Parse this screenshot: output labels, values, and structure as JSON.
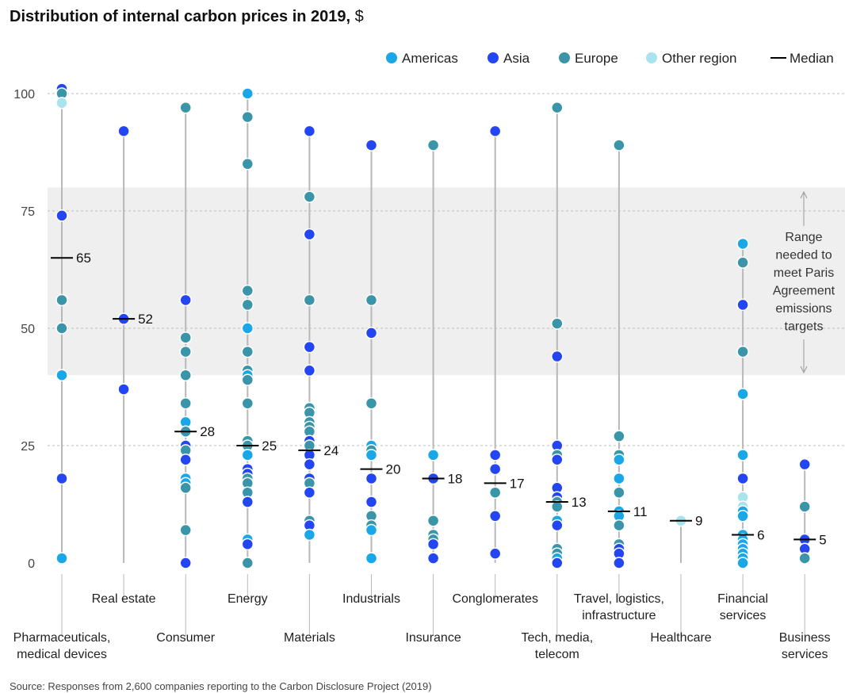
{
  "title": "Distribution of internal carbon prices in 2019,",
  "title_unit": "$",
  "source": "Source: Responses from 2,600 companies reporting to the Carbon Disclosure Project (2019)",
  "colors": {
    "Americas": "#1aa7e8",
    "Asia": "#2445f2",
    "Europe": "#3a95a8",
    "Other region": "#a9e3ee",
    "median": "#000000",
    "stem": "#b8b8b8",
    "band": "#efefef",
    "grid": "#bdbdbd"
  },
  "legend": {
    "items": [
      {
        "label": "Americas",
        "color_key": "Americas"
      },
      {
        "label": "Asia",
        "color_key": "Asia"
      },
      {
        "label": "Europe",
        "color_key": "Europe"
      },
      {
        "label": "Other region",
        "color_key": "Other region"
      }
    ],
    "median_label": "Median"
  },
  "range_annotation": [
    "Range",
    "needed to",
    "meet Paris",
    "Agreement",
    "emissions",
    "targets"
  ],
  "chart_data": {
    "type": "scatter",
    "title": "Distribution of internal carbon prices in 2019, $",
    "ylim": [
      0,
      100
    ],
    "yticks": [
      0,
      25,
      50,
      75,
      100
    ],
    "band": [
      40,
      80
    ],
    "grid": true,
    "legend_position": "top-right",
    "categories": [
      {
        "name": [
          "Pharmaceuticals,",
          "medical devices"
        ],
        "row": 2,
        "median": 65,
        "points": [
          [
            101,
            "Asia"
          ],
          [
            100,
            "Europe"
          ],
          [
            98,
            "Other region"
          ],
          [
            74,
            "Asia"
          ],
          [
            56,
            "Europe"
          ],
          [
            50,
            "Europe"
          ],
          [
            40,
            "Americas"
          ],
          [
            18,
            "Asia"
          ],
          [
            1,
            "Americas"
          ]
        ]
      },
      {
        "name": [
          "Real estate"
        ],
        "row": 1,
        "median": 52,
        "points": [
          [
            92,
            "Asia"
          ],
          [
            52,
            "Asia"
          ],
          [
            37,
            "Asia"
          ]
        ]
      },
      {
        "name": [
          "Consumer"
        ],
        "row": 2,
        "median": 28,
        "points": [
          [
            97,
            "Europe"
          ],
          [
            56,
            "Asia"
          ],
          [
            48,
            "Europe"
          ],
          [
            45,
            "Europe"
          ],
          [
            40,
            "Europe"
          ],
          [
            34,
            "Europe"
          ],
          [
            30,
            "Americas"
          ],
          [
            28,
            "Europe"
          ],
          [
            25,
            "Asia"
          ],
          [
            24,
            "Europe"
          ],
          [
            22,
            "Asia"
          ],
          [
            18,
            "Americas"
          ],
          [
            17,
            "Americas"
          ],
          [
            16,
            "Europe"
          ],
          [
            7,
            "Europe"
          ],
          [
            0,
            "Asia"
          ]
        ]
      },
      {
        "name": [
          "Energy"
        ],
        "row": 1,
        "median": 25,
        "points": [
          [
            100,
            "Americas"
          ],
          [
            95,
            "Europe"
          ],
          [
            85,
            "Europe"
          ],
          [
            58,
            "Europe"
          ],
          [
            55,
            "Europe"
          ],
          [
            50,
            "Americas"
          ],
          [
            45,
            "Europe"
          ],
          [
            41,
            "Europe"
          ],
          [
            40,
            "Americas"
          ],
          [
            39,
            "Europe"
          ],
          [
            34,
            "Europe"
          ],
          [
            26,
            "Europe"
          ],
          [
            25,
            "Europe"
          ],
          [
            23,
            "Americas"
          ],
          [
            20,
            "Asia"
          ],
          [
            19,
            "Asia"
          ],
          [
            18,
            "Europe"
          ],
          [
            17,
            "Europe"
          ],
          [
            15,
            "Europe"
          ],
          [
            13,
            "Asia"
          ],
          [
            5,
            "Americas"
          ],
          [
            4,
            "Asia"
          ],
          [
            0,
            "Europe"
          ]
        ]
      },
      {
        "name": [
          "Materials"
        ],
        "row": 2,
        "median": 24,
        "points": [
          [
            92,
            "Asia"
          ],
          [
            78,
            "Europe"
          ],
          [
            70,
            "Asia"
          ],
          [
            56,
            "Europe"
          ],
          [
            46,
            "Asia"
          ],
          [
            41,
            "Asia"
          ],
          [
            33,
            "Europe"
          ],
          [
            32,
            "Europe"
          ],
          [
            30,
            "Europe"
          ],
          [
            29,
            "Europe"
          ],
          [
            28,
            "Europe"
          ],
          [
            26,
            "Asia"
          ],
          [
            25,
            "Europe"
          ],
          [
            23,
            "Asia"
          ],
          [
            21,
            "Asia"
          ],
          [
            18,
            "Asia"
          ],
          [
            17,
            "Europe"
          ],
          [
            15,
            "Asia"
          ],
          [
            9,
            "Europe"
          ],
          [
            8,
            "Asia"
          ],
          [
            6,
            "Americas"
          ]
        ]
      },
      {
        "name": [
          "Industrials"
        ],
        "row": 1,
        "median": 20,
        "points": [
          [
            89,
            "Asia"
          ],
          [
            56,
            "Europe"
          ],
          [
            49,
            "Asia"
          ],
          [
            34,
            "Europe"
          ],
          [
            25,
            "Americas"
          ],
          [
            24,
            "Europe"
          ],
          [
            23,
            "Americas"
          ],
          [
            18,
            "Asia"
          ],
          [
            13,
            "Asia"
          ],
          [
            10,
            "Europe"
          ],
          [
            8,
            "Europe"
          ],
          [
            7,
            "Americas"
          ],
          [
            1,
            "Americas"
          ]
        ]
      },
      {
        "name": [
          "Insurance"
        ],
        "row": 2,
        "median": 18,
        "points": [
          [
            89,
            "Europe"
          ],
          [
            23,
            "Americas"
          ],
          [
            18,
            "Asia"
          ],
          [
            9,
            "Europe"
          ],
          [
            6,
            "Europe"
          ],
          [
            5,
            "Europe"
          ],
          [
            4,
            "Asia"
          ],
          [
            1,
            "Asia"
          ]
        ]
      },
      {
        "name": [
          "Conglomerates"
        ],
        "row": 1,
        "median": 17,
        "points": [
          [
            92,
            "Asia"
          ],
          [
            23,
            "Asia"
          ],
          [
            20,
            "Asia"
          ],
          [
            15,
            "Europe"
          ],
          [
            10,
            "Asia"
          ],
          [
            2,
            "Asia"
          ]
        ]
      },
      {
        "name": [
          "Tech, media,",
          "telecom"
        ],
        "row": 2,
        "median": 13,
        "points": [
          [
            97,
            "Europe"
          ],
          [
            51,
            "Europe"
          ],
          [
            44,
            "Asia"
          ],
          [
            25,
            "Asia"
          ],
          [
            23,
            "Europe"
          ],
          [
            22,
            "Asia"
          ],
          [
            16,
            "Asia"
          ],
          [
            14,
            "Asia"
          ],
          [
            13,
            "Europe"
          ],
          [
            12,
            "Europe"
          ],
          [
            9,
            "Americas"
          ],
          [
            8,
            "Asia"
          ],
          [
            3,
            "Europe"
          ],
          [
            2,
            "Europe"
          ],
          [
            1,
            "Americas"
          ],
          [
            0,
            "Asia"
          ]
        ]
      },
      {
        "name": [
          "Travel, logistics,",
          "infrastructure"
        ],
        "row": 1,
        "median": 11,
        "points": [
          [
            89,
            "Europe"
          ],
          [
            27,
            "Europe"
          ],
          [
            23,
            "Europe"
          ],
          [
            22,
            "Americas"
          ],
          [
            18,
            "Americas"
          ],
          [
            15,
            "Europe"
          ],
          [
            11,
            "Americas"
          ],
          [
            10,
            "Americas"
          ],
          [
            8,
            "Europe"
          ],
          [
            4,
            "Europe"
          ],
          [
            3,
            "Asia"
          ],
          [
            2,
            "Asia"
          ],
          [
            0,
            "Asia"
          ]
        ]
      },
      {
        "name": [
          "Healthcare"
        ],
        "row": 2,
        "median": 9,
        "points": [
          [
            9,
            "Other region"
          ]
        ]
      },
      {
        "name": [
          "Financial",
          "services"
        ],
        "row": 1,
        "median": 6,
        "points": [
          [
            68,
            "Americas"
          ],
          [
            64,
            "Europe"
          ],
          [
            55,
            "Asia"
          ],
          [
            45,
            "Europe"
          ],
          [
            36,
            "Americas"
          ],
          [
            23,
            "Americas"
          ],
          [
            18,
            "Asia"
          ],
          [
            14,
            "Other region"
          ],
          [
            12,
            "Other region"
          ],
          [
            11,
            "Americas"
          ],
          [
            10,
            "Americas"
          ],
          [
            6,
            "Americas"
          ],
          [
            5,
            "Americas"
          ],
          [
            4,
            "Americas"
          ],
          [
            3,
            "Americas"
          ],
          [
            2,
            "Americas"
          ],
          [
            1,
            "Americas"
          ],
          [
            0,
            "Americas"
          ]
        ]
      },
      {
        "name": [
          "Business",
          "services"
        ],
        "row": 2,
        "median": 5,
        "points": [
          [
            21,
            "Asia"
          ],
          [
            12,
            "Europe"
          ],
          [
            5,
            "Asia"
          ],
          [
            3,
            "Asia"
          ],
          [
            1,
            "Europe"
          ]
        ]
      }
    ]
  }
}
